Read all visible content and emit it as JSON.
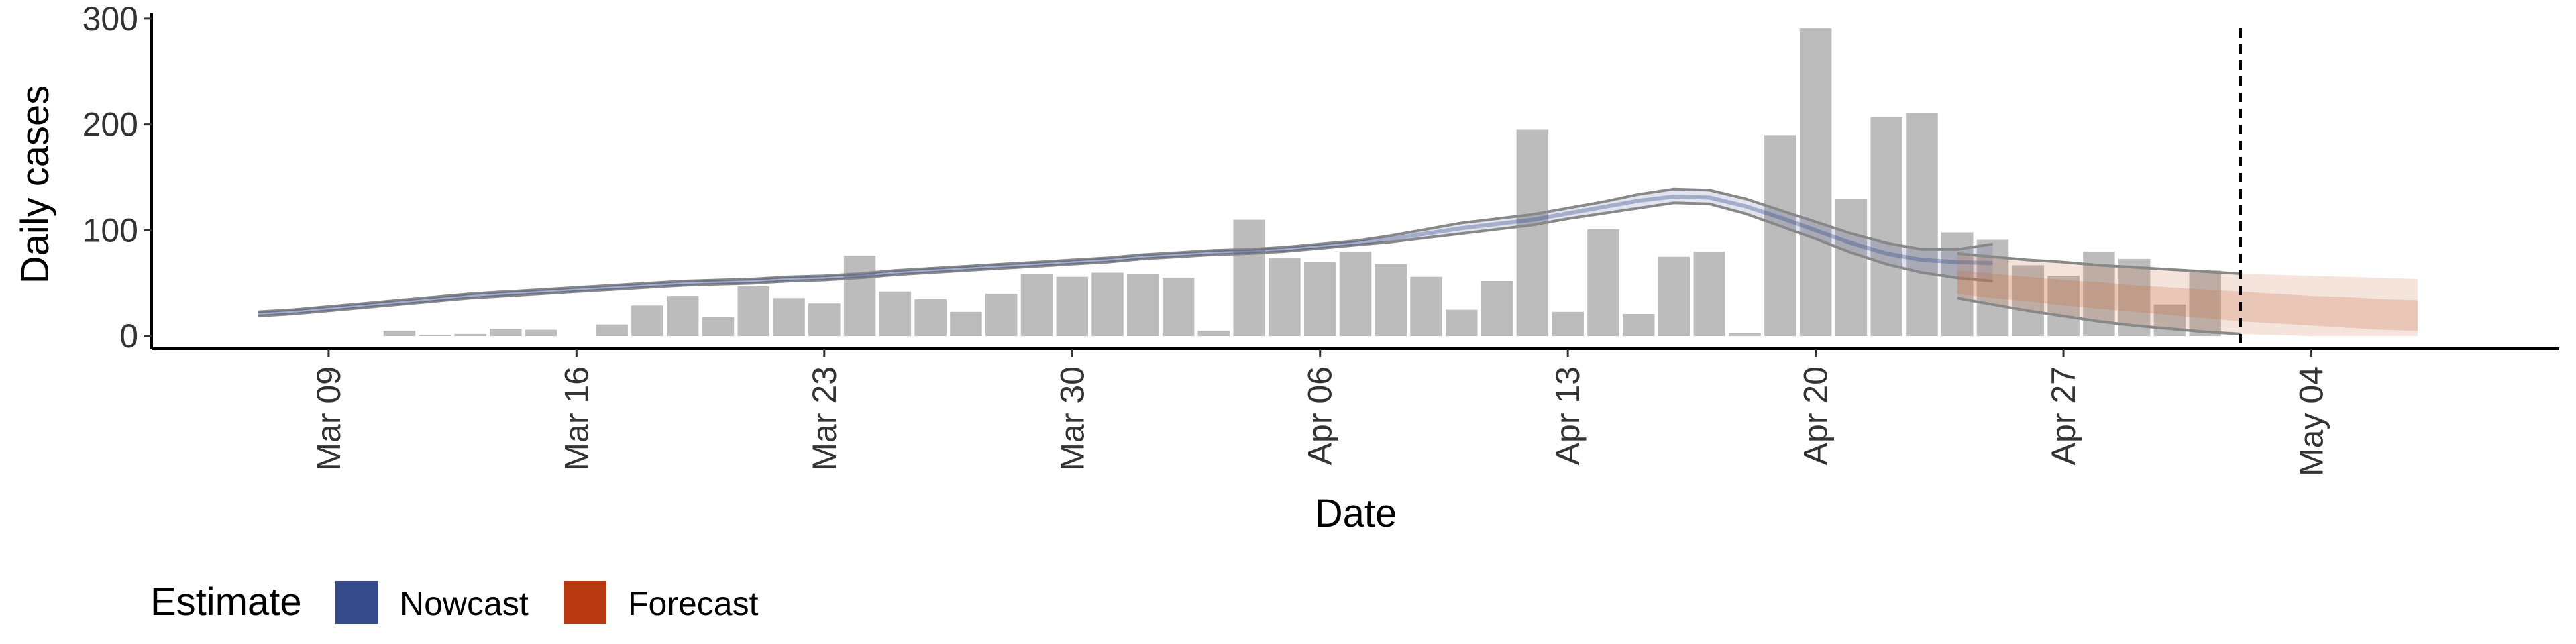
{
  "chart_data": {
    "type": "bar",
    "xlabel": "Date",
    "ylabel": "Daily cases",
    "ylim": [
      -12,
      305
    ],
    "y_ticks": [
      0,
      100,
      200,
      300
    ],
    "x_ticks": [
      {
        "date": "2020-03-09",
        "label": "Mar 09"
      },
      {
        "date": "2020-03-16",
        "label": "Mar 16"
      },
      {
        "date": "2020-03-23",
        "label": "Mar 23"
      },
      {
        "date": "2020-03-30",
        "label": "Mar 30"
      },
      {
        "date": "2020-04-06",
        "label": "Apr 06"
      },
      {
        "date": "2020-04-13",
        "label": "Apr 13"
      },
      {
        "date": "2020-04-20",
        "label": "Apr 20"
      },
      {
        "date": "2020-04-27",
        "label": "Apr 27"
      },
      {
        "date": "2020-05-04",
        "label": "May 04"
      }
    ],
    "xlim": [
      "2020-03-04",
      "2020-05-11"
    ],
    "reported_cases": {
      "start_date": "2020-03-11",
      "values": [
        5,
        1,
        2,
        7,
        6,
        0,
        11,
        29,
        38,
        18,
        47,
        36,
        31,
        76,
        42,
        35,
        23,
        40,
        59,
        56,
        60,
        59,
        55,
        5,
        110,
        74,
        70,
        80,
        68,
        56,
        25,
        52,
        195,
        23,
        101,
        21,
        75,
        80,
        3,
        190,
        291,
        130,
        207,
        211,
        98,
        91,
        67,
        57,
        80,
        73,
        30,
        62
      ]
    },
    "nowcast": {
      "start_date": "2020-03-07",
      "median": [
        21,
        23,
        26,
        29,
        32,
        35,
        38,
        40,
        42,
        44,
        46,
        48,
        50,
        51,
        52,
        54,
        55,
        57,
        60,
        62,
        64,
        66,
        68,
        70,
        72,
        75,
        77,
        79,
        80,
        82,
        85,
        88,
        92,
        97,
        102,
        106,
        110,
        116,
        122,
        128,
        132,
        131,
        123,
        112,
        100,
        88,
        78,
        72,
        70,
        69
      ],
      "lower": [
        19,
        21,
        24,
        27,
        30,
        33,
        36,
        38,
        40,
        42,
        44,
        46,
        48,
        49,
        50,
        52,
        53,
        55,
        58,
        60,
        62,
        64,
        66,
        68,
        70,
        73,
        75,
        77,
        78,
        80,
        83,
        86,
        89,
        93,
        97,
        101,
        105,
        111,
        116,
        121,
        126,
        125,
        116,
        104,
        92,
        79,
        68,
        60,
        55,
        52
      ],
      "upper": [
        23,
        25,
        28,
        31,
        34,
        37,
        40,
        42,
        44,
        46,
        48,
        50,
        52,
        53,
        54,
        56,
        57,
        59,
        62,
        64,
        66,
        68,
        70,
        72,
        74,
        77,
        79,
        81,
        82,
        84,
        87,
        90,
        95,
        101,
        107,
        111,
        115,
        121,
        127,
        134,
        139,
        138,
        130,
        119,
        108,
        97,
        88,
        82,
        82,
        87
      ]
    },
    "forecast": {
      "start_date": "2020-04-24",
      "median": [
        50,
        47,
        44,
        41,
        38,
        35,
        32,
        29,
        27,
        25,
        23,
        21,
        19,
        18
      ],
      "inner_lower": [
        40,
        36,
        33,
        29,
        26,
        23,
        20,
        17,
        14,
        12,
        10,
        8,
        6,
        5
      ],
      "inner_upper": [
        62,
        59,
        56,
        53,
        51,
        48,
        46,
        44,
        42,
        40,
        38,
        37,
        35,
        34
      ],
      "outer_lower": [
        36,
        30,
        24,
        19,
        14,
        10,
        7,
        4,
        2,
        1,
        0,
        0,
        0,
        0
      ],
      "outer_upper": [
        78,
        75,
        72,
        70,
        67,
        65,
        63,
        61,
        59,
        58,
        57,
        56,
        55,
        54
      ]
    },
    "forecast_date": "2020-05-02",
    "grid": false,
    "legend": {
      "title": "Estimate",
      "position": "bottom-left",
      "entries": [
        {
          "label": "Nowcast",
          "color": "#354a8a"
        },
        {
          "label": "Forecast",
          "color": "#b8380f"
        }
      ]
    },
    "colors": {
      "bars": "#bcbcbc",
      "median_line": "#555555",
      "bound_line": "#888888",
      "nowcast_band": "#354a8a",
      "forecast_band": "#c76a3f"
    }
  }
}
